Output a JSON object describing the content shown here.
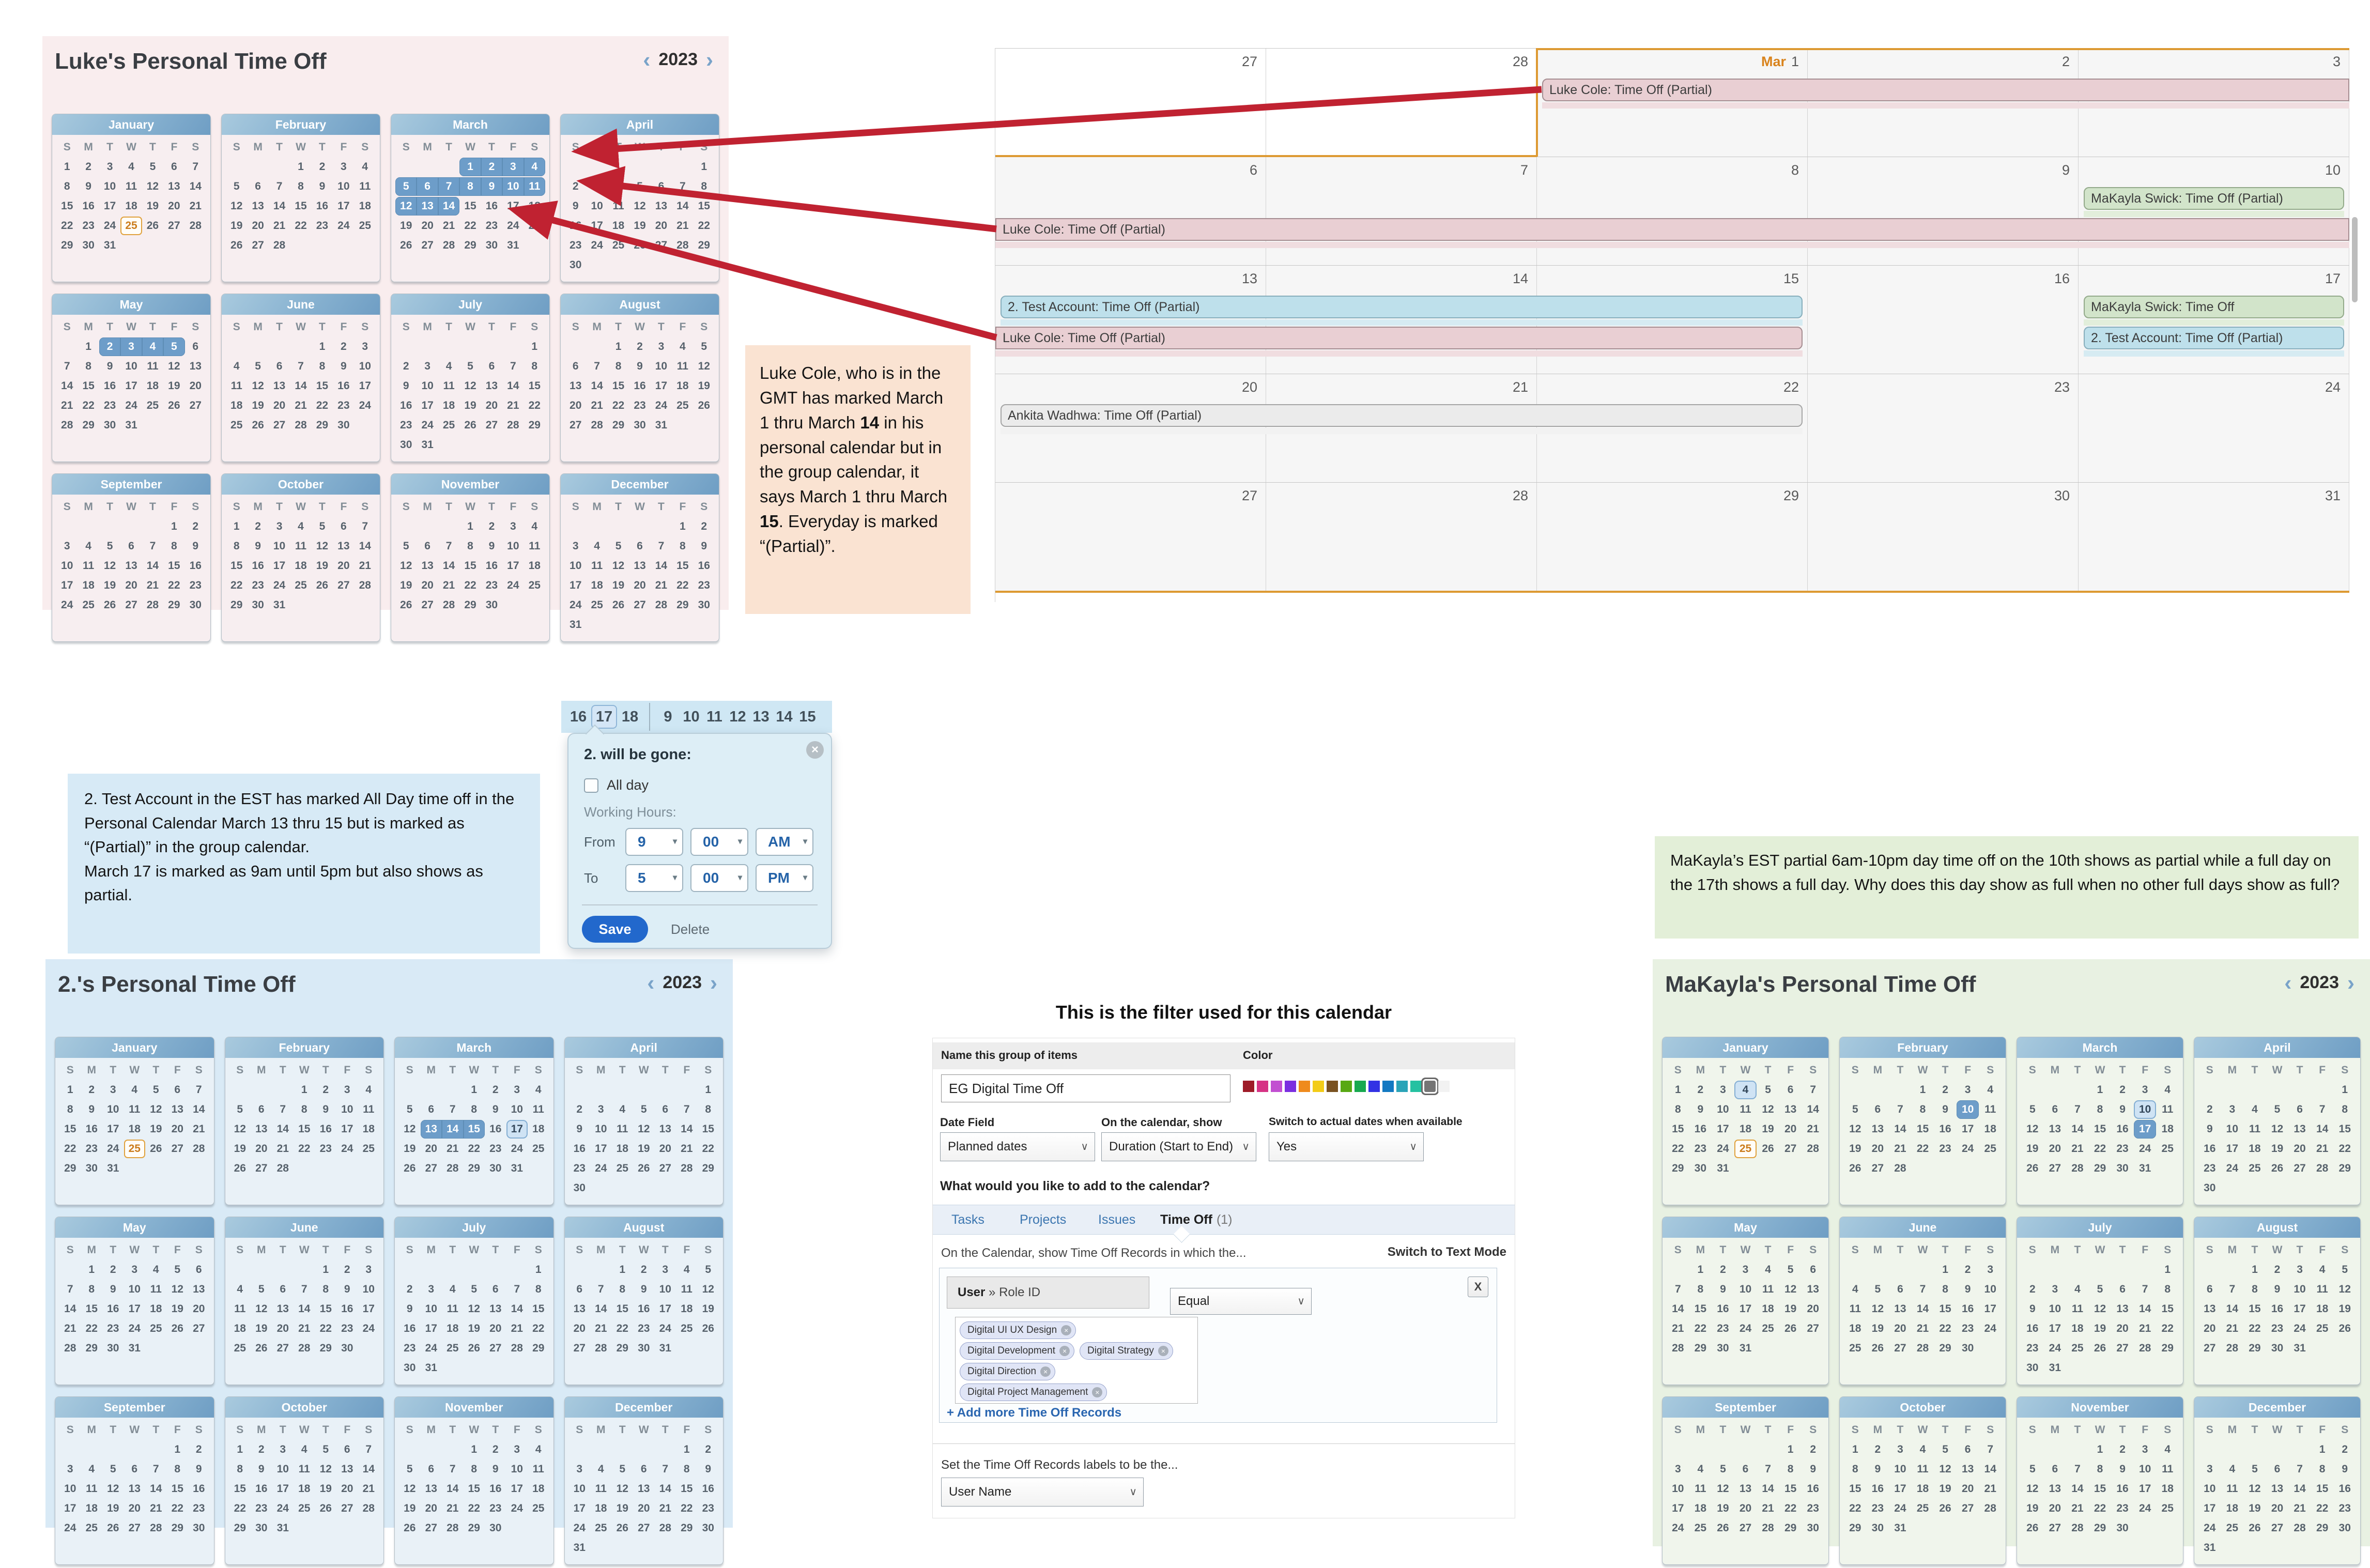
{
  "dow": [
    "S",
    "M",
    "T",
    "W",
    "T",
    "F",
    "S"
  ],
  "calendars": {
    "luke": {
      "title": "Luke's Personal Time Off",
      "year": "2023",
      "months": [
        {
          "n": "January",
          "f": 0,
          "d": 31,
          "today": 25
        },
        {
          "n": "February",
          "f": 3,
          "d": 28
        },
        {
          "n": "March",
          "f": 3,
          "d": 31,
          "sel": [
            [
              1,
              4
            ],
            [
              5,
              11
            ],
            [
              12,
              14
            ]
          ]
        },
        {
          "n": "April",
          "f": 6,
          "d": 30
        },
        {
          "n": "May",
          "f": 1,
          "d": 31,
          "sel": [
            [
              2,
              5
            ]
          ]
        },
        {
          "n": "June",
          "f": 4,
          "d": 30
        },
        {
          "n": "July",
          "f": 6,
          "d": 31
        },
        {
          "n": "August",
          "f": 2,
          "d": 31
        },
        {
          "n": "September",
          "f": 5,
          "d": 30
        },
        {
          "n": "October",
          "f": 0,
          "d": 31
        },
        {
          "n": "November",
          "f": 3,
          "d": 30
        },
        {
          "n": "December",
          "f": 5,
          "d": 31
        }
      ]
    },
    "test": {
      "title": "2.'s Personal Time Off",
      "year": "2023",
      "months": [
        {
          "n": "January",
          "f": 0,
          "d": 31,
          "today": 25
        },
        {
          "n": "February",
          "f": 3,
          "d": 28
        },
        {
          "n": "March",
          "f": 3,
          "d": 31,
          "sel": [
            [
              13,
              15
            ]
          ],
          "out": [
            17
          ]
        },
        {
          "n": "April",
          "f": 6,
          "d": 30
        },
        {
          "n": "May",
          "f": 1,
          "d": 31
        },
        {
          "n": "June",
          "f": 4,
          "d": 30
        },
        {
          "n": "July",
          "f": 6,
          "d": 31
        },
        {
          "n": "August",
          "f": 2,
          "d": 31
        },
        {
          "n": "September",
          "f": 5,
          "d": 30
        },
        {
          "n": "October",
          "f": 0,
          "d": 31
        },
        {
          "n": "November",
          "f": 3,
          "d": 30
        },
        {
          "n": "December",
          "f": 5,
          "d": 31
        }
      ]
    },
    "makayla": {
      "title": "MaKayla's Personal Time Off",
      "year": "2023",
      "months": [
        {
          "n": "January",
          "f": 0,
          "d": 31,
          "today": 25,
          "out": [
            4
          ]
        },
        {
          "n": "February",
          "f": 3,
          "d": 28,
          "sel": [
            [
              10,
              10
            ]
          ]
        },
        {
          "n": "March",
          "f": 3,
          "d": 31,
          "sel": [
            [
              17,
              17
            ]
          ],
          "out": [
            10
          ]
        },
        {
          "n": "April",
          "f": 6,
          "d": 30
        },
        {
          "n": "May",
          "f": 1,
          "d": 31
        },
        {
          "n": "June",
          "f": 4,
          "d": 30
        },
        {
          "n": "July",
          "f": 6,
          "d": 31
        },
        {
          "n": "August",
          "f": 2,
          "d": 31
        },
        {
          "n": "September",
          "f": 5,
          "d": 30
        },
        {
          "n": "October",
          "f": 0,
          "d": 31
        },
        {
          "n": "November",
          "f": 3,
          "d": 30
        },
        {
          "n": "December",
          "f": 5,
          "d": 31
        }
      ]
    }
  },
  "group_calendar": {
    "weeks": [
      {
        "days": [
          {
            "n": "27",
            "prev": true
          },
          {
            "n": "28",
            "prev": true
          },
          {
            "n": "1",
            "pre": "Mar"
          },
          {
            "n": "2"
          },
          {
            "n": "3"
          }
        ],
        "bars": [
          {
            "label": "Luke Cole: Time Off (Partial)",
            "type": "pink",
            "start": 2,
            "end": 4,
            "lane": 0,
            "rl": true,
            "rr": false
          }
        ]
      },
      {
        "days": [
          {
            "n": "6"
          },
          {
            "n": "7"
          },
          {
            "n": "8"
          },
          {
            "n": "9"
          },
          {
            "n": "10"
          }
        ],
        "bars": [
          {
            "label": "MaKayla Swick: Time Off (Partial)",
            "type": "green",
            "start": 4,
            "end": 4,
            "lane": 0,
            "rl": true,
            "rr": true
          },
          {
            "label": "Luke Cole: Time Off (Partial)",
            "type": "pink",
            "start": 0,
            "end": 4,
            "lane": 1,
            "rl": false,
            "rr": false
          }
        ]
      },
      {
        "days": [
          {
            "n": "13"
          },
          {
            "n": "14"
          },
          {
            "n": "15"
          },
          {
            "n": "16"
          },
          {
            "n": "17"
          }
        ],
        "bars": [
          {
            "label": "2. Test Account: Time Off (Partial)",
            "type": "blue",
            "start": 0,
            "end": 2,
            "lane": 0,
            "rl": true,
            "rr": true
          },
          {
            "label": "Luke Cole: Time Off (Partial)",
            "type": "pink",
            "start": 0,
            "end": 2,
            "lane": 1,
            "rl": false,
            "rr": true
          },
          {
            "label": "MaKayla Swick: Time Off",
            "type": "green",
            "start": 4,
            "end": 4,
            "lane": 0,
            "rl": true,
            "rr": true
          },
          {
            "label": "2. Test Account: Time Off (Partial)",
            "type": "blue",
            "start": 4,
            "end": 4,
            "lane": 1,
            "rl": true,
            "rr": true
          }
        ]
      },
      {
        "days": [
          {
            "n": "20"
          },
          {
            "n": "21"
          },
          {
            "n": "22"
          },
          {
            "n": "23"
          },
          {
            "n": "24"
          }
        ],
        "bars": [
          {
            "label": "Ankita Wadhwa: Time Off (Partial)",
            "type": "gray",
            "start": 0,
            "end": 2,
            "lane": 0,
            "rl": true,
            "rr": true
          }
        ]
      },
      {
        "days": [
          {
            "n": "27"
          },
          {
            "n": "28"
          },
          {
            "n": "29"
          },
          {
            "n": "30"
          },
          {
            "n": "31"
          }
        ],
        "bars": []
      }
    ]
  },
  "annotations": {
    "luke": [
      {
        "t": "Luke Cole, who is in the GMT has marked March 1 thru March "
      },
      {
        "t": "14",
        "b": true
      },
      {
        "t": " in his personal calendar but in the group calendar, it says March 1 thru March "
      },
      {
        "t": "15",
        "b": true
      },
      {
        "t": ". Everyday is marked “(Partial)”."
      }
    ],
    "test": [
      "2. Test Account in the EST has marked All Day time off in the Personal Calendar March 13 thru 15 but is marked as “(Partial)” in the group calendar.",
      "March 17 is marked as 9am until 5pm but also shows as partial."
    ],
    "makayla": "MaKayla’s EST partial 6am-10pm day time off on the 10th shows as partial while a full day on the 17th shows a full day. Why does this day show as full when no other full days show as full?"
  },
  "popup": {
    "strip_left": [
      "16",
      "17",
      "18"
    ],
    "strip_right": [
      "9",
      "10",
      "11",
      "12",
      "13",
      "14",
      "15"
    ],
    "title": "2. will be gone:",
    "all_day": "All day",
    "working_hours": "Working Hours:",
    "from_label": "From",
    "to_label": "To",
    "from_hour": "9",
    "from_min": "00",
    "from_ampm": "AM",
    "to_hour": "5",
    "to_min": "00",
    "to_ampm": "PM",
    "save": "Save",
    "delete": "Delete"
  },
  "filter": {
    "heading": "This is the filter used for this calendar",
    "name_label": "Name this group of items",
    "name_value": "EG Digital Time Off",
    "color_label": "Color",
    "colors": [
      "#9e1b28",
      "#d63384",
      "#c24fd1",
      "#7b2fe0",
      "#ef8b1d",
      "#f3cc17",
      "#7a5221",
      "#58a813",
      "#17a94f",
      "#3332e4",
      "#1379c2",
      "#2ba4b8",
      "#25c1a1",
      "#757575",
      "#f2f2f2"
    ],
    "selected_color_index": 13,
    "date_field_label": "Date Field",
    "date_field_value": "Planned dates",
    "show_label": "On the calendar, show",
    "show_value": "Duration (Start to End)",
    "switch_label": "Switch to actual dates when available",
    "switch_value": "Yes",
    "add_question": "What would you like to add to the calendar?",
    "tabs": [
      {
        "label": "Tasks"
      },
      {
        "label": "Projects"
      },
      {
        "label": "Issues"
      },
      {
        "label": "Time Off",
        "count": "(1)"
      }
    ],
    "records_intro": "On the Calendar, show Time Off Records in which the...",
    "text_mode": "Switch to Text Mode",
    "field_primary": "User",
    "field_secondary": "» Role ID",
    "operator": "Equal",
    "chips": [
      [
        "Digital UI UX Design"
      ],
      [
        "Digital Development",
        "Digital Strategy"
      ],
      [
        "Digital Direction"
      ],
      [
        "Digital Project Management"
      ]
    ],
    "add_more": "+ Add more Time Off Records",
    "labels_intro": "Set the Time Off Records labels to be the...",
    "labels_value": "User Name"
  }
}
